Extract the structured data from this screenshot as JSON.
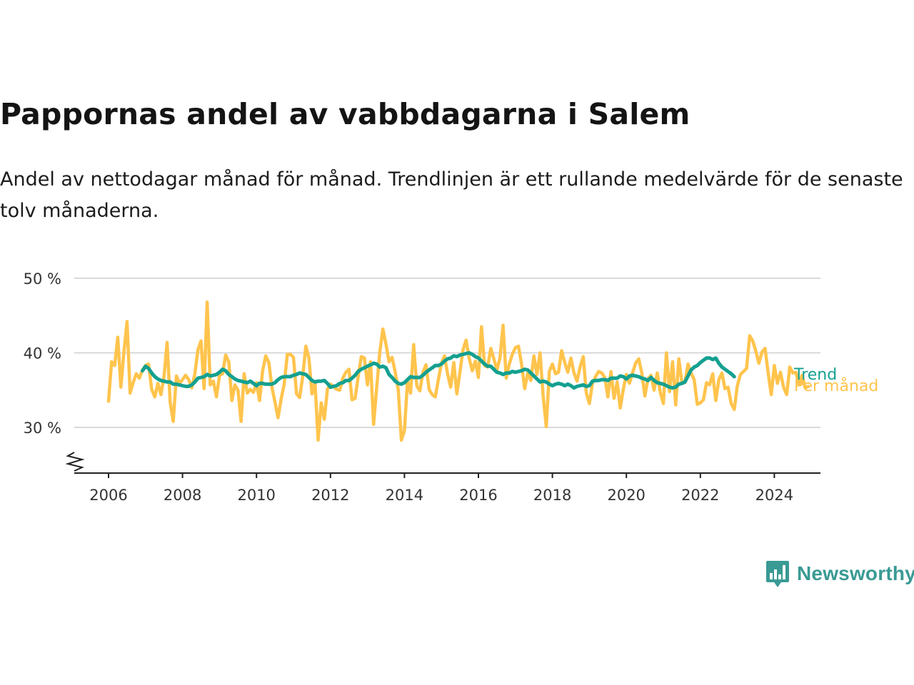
{
  "title": "Pappornas andel av vabbdagarna i Salem",
  "subtitle": "Andel av nettodagar månad för månad. Trendlinjen är ett rullande medelvärde för de senaste tolv månaderna.",
  "brand": {
    "name": "Newsworthy",
    "color": "#3a9a94"
  },
  "chart_data": {
    "type": "line",
    "y_ticks": [
      "30 %",
      "40 %",
      "50 %"
    ],
    "y_tick_values": [
      30,
      40,
      50
    ],
    "x_ticks": [
      "2006",
      "2008",
      "2010",
      "2012",
      "2014",
      "2016",
      "2018",
      "2020",
      "2022",
      "2024"
    ],
    "x_tick_values": [
      2006,
      2008,
      2010,
      2012,
      2014,
      2016,
      2018,
      2020,
      2022,
      2024
    ],
    "xlim": [
      2005,
      2025.4
    ],
    "ylim": [
      24,
      50
    ],
    "axis_break": true,
    "grid": true,
    "legend": "inline-right",
    "series": [
      {
        "name": "Per månad",
        "color": "#ffc44d",
        "start": "2006-01",
        "values": [
          33.5,
          38.8,
          38.3,
          42.1,
          35.4,
          40.2,
          44.2,
          34.6,
          36.0,
          37.2,
          36.6,
          37.7,
          38.3,
          38.5,
          35.1,
          34.1,
          35.9,
          34.4,
          36.8,
          41.4,
          33.4,
          30.8,
          36.9,
          35.9,
          36.4,
          37.0,
          36.4,
          35.3,
          37.2,
          40.4,
          41.6,
          35.2,
          46.8,
          35.7,
          36.2,
          34.1,
          37.0,
          37.2,
          39.7,
          38.8,
          33.6,
          35.7,
          35.0,
          30.8,
          37.2,
          34.6,
          35.1,
          34.7,
          36.0,
          33.6,
          37.6,
          39.6,
          38.7,
          35.4,
          33.4,
          31.3,
          33.8,
          35.8,
          39.8,
          39.8,
          39.4,
          34.5,
          34.0,
          36.8,
          40.9,
          39.3,
          34.5,
          36.0,
          28.3,
          33.3,
          31.1,
          35.1,
          35.8,
          35.5,
          35.1,
          35.0,
          36.6,
          37.4,
          37.8,
          33.7,
          33.9,
          36.8,
          39.5,
          39.3,
          35.7,
          38.8,
          30.4,
          35.3,
          40.1,
          43.2,
          41.2,
          38.8,
          39.4,
          37.4,
          35.0,
          28.3,
          29.6,
          36.2,
          34.6,
          41.1,
          35.6,
          34.9,
          37.4,
          38.4,
          35.1,
          34.4,
          34.1,
          36.4,
          38.6,
          39.6,
          37.2,
          35.4,
          38.7,
          34.5,
          37.4,
          40.4,
          41.7,
          39.3,
          37.6,
          38.9,
          36.7,
          43.5,
          38.3,
          38.1,
          40.6,
          39.2,
          37.7,
          39.3,
          43.7,
          36.6,
          38.5,
          39.8,
          40.7,
          40.9,
          38.5,
          35.2,
          37.3,
          36.3,
          39.6,
          37.1,
          40.0,
          34.3,
          30.1,
          37.5,
          38.5,
          37.2,
          37.4,
          40.3,
          38.7,
          37.4,
          39.3,
          37.3,
          36.2,
          38.1,
          39.5,
          34.6,
          33.2,
          35.9,
          36.8,
          37.5,
          37.3,
          36.7,
          34.1,
          37.5,
          33.9,
          36.1,
          32.6,
          35.1,
          37.1,
          35.9,
          37.3,
          38.6,
          39.2,
          37.3,
          34.2,
          36.5,
          37.0,
          35.0,
          37.3,
          34.7,
          33.2,
          40.0,
          34.8,
          38.8,
          33.0,
          39.2,
          36.1,
          36.0,
          38.5,
          37.3,
          36.4,
          33.1,
          33.3,
          33.7,
          36.0,
          35.7,
          37.2,
          33.6,
          36.4,
          37.3,
          35.2,
          35.4,
          33.2,
          32.4,
          35.6,
          37.1,
          37.5,
          37.9,
          42.3,
          41.6,
          40.2,
          38.6,
          40.1,
          40.6,
          37.3,
          34.4,
          38.3,
          35.9,
          37.4,
          35.4,
          34.4,
          38.1,
          37.3,
          37.4,
          35.7,
          37.0,
          35.3,
          35.5
        ]
      },
      {
        "name": "Trend",
        "color": "#14a090",
        "start": "2006-12",
        "values": [
          37.6,
          38.2,
          37.9,
          37.3,
          36.8,
          36.5,
          36.3,
          36.2,
          36.1,
          36.1,
          35.8,
          35.8,
          35.7,
          35.6,
          35.5,
          35.5,
          35.7,
          36.1,
          36.6,
          36.7,
          36.8,
          37.1,
          36.9,
          37.0,
          37.1,
          37.4,
          37.8,
          37.6,
          37.1,
          36.8,
          36.5,
          36.3,
          36.2,
          36.1,
          36.0,
          36.2,
          35.9,
          35.6,
          35.9,
          35.9,
          35.8,
          35.8,
          35.8,
          36.0,
          36.4,
          36.7,
          36.8,
          36.8,
          36.8,
          37.0,
          37.1,
          37.3,
          37.2,
          37.1,
          36.7,
          36.3,
          36.1,
          36.2,
          36.2,
          36.3,
          35.9,
          35.4,
          35.5,
          35.6,
          35.9,
          36.0,
          36.3,
          36.3,
          36.6,
          37.0,
          37.5,
          37.8,
          38.0,
          38.2,
          38.4,
          38.6,
          38.5,
          38.1,
          38.2,
          38.0,
          37.1,
          36.7,
          36.2,
          35.9,
          35.8,
          36.0,
          36.4,
          36.8,
          36.7,
          36.7,
          36.7,
          37.0,
          37.4,
          37.7,
          38.0,
          38.3,
          38.3,
          38.5,
          38.9,
          39.2,
          39.3,
          39.6,
          39.5,
          39.7,
          39.8,
          39.9,
          40.0,
          39.8,
          39.5,
          39.3,
          38.9,
          38.5,
          38.2,
          38.2,
          37.8,
          37.4,
          37.3,
          37.1,
          37.3,
          37.3,
          37.5,
          37.4,
          37.5,
          37.6,
          37.8,
          37.7,
          37.3,
          36.9,
          36.5,
          36.1,
          36.2,
          36.1,
          35.8,
          35.6,
          35.8,
          35.9,
          35.8,
          35.6,
          35.8,
          35.6,
          35.3,
          35.5,
          35.6,
          35.7,
          35.5,
          35.6,
          36.2,
          36.3,
          36.3,
          36.4,
          36.4,
          36.3,
          36.6,
          36.6,
          36.6,
          36.9,
          36.8,
          36.5,
          36.9,
          37.0,
          36.9,
          36.8,
          36.6,
          36.5,
          36.3,
          36.7,
          36.3,
          36.0,
          35.9,
          35.8,
          35.6,
          35.4,
          35.3,
          35.4,
          35.8,
          35.9,
          36.1,
          36.9,
          37.7,
          38.1,
          38.3,
          38.7,
          39.0,
          39.3,
          39.3,
          39.1,
          39.3,
          38.6,
          38.1,
          37.8,
          37.5,
          37.2,
          36.8
        ]
      }
    ]
  }
}
